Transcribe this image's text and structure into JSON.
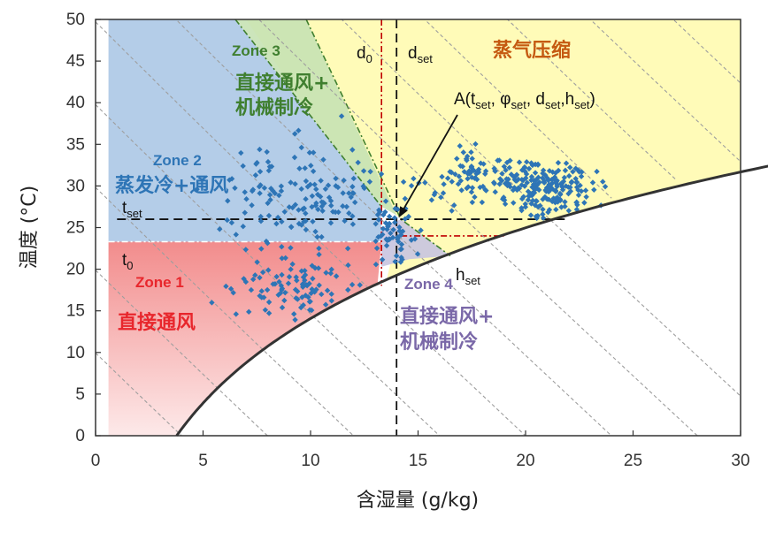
{
  "chart_data": {
    "type": "scatter",
    "xlabel": "含湿量 (g/kg)",
    "ylabel": "温度 (°C)",
    "xlim": [
      0,
      30
    ],
    "ylim": [
      0,
      50
    ],
    "xticks": [
      0,
      5,
      10,
      15,
      20,
      25,
      30
    ],
    "yticks": [
      0,
      5,
      10,
      15,
      20,
      25,
      30,
      35,
      40,
      45,
      50
    ],
    "grid": false,
    "setpoint": {
      "t_set": 26,
      "d_set": 14,
      "d_0": 13,
      "t_0": 23.3
    },
    "marker_labels": {
      "t_set": {
        "main": "t",
        "sub": "set"
      },
      "t_0": {
        "main": "t",
        "sub": "0"
      },
      "d_0": {
        "main": "d",
        "sub": "0"
      },
      "d_set": {
        "main": "d",
        "sub": "set"
      },
      "h_set": {
        "main": "h",
        "sub": "set"
      }
    },
    "point_A": {
      "x": 14.1,
      "y": 26.2,
      "label_parts": [
        {
          "t": "A(t",
          "sub": false
        },
        {
          "t": "set",
          "sub": true
        },
        {
          "t": ", φ",
          "sub": false
        },
        {
          "t": "set",
          "sub": true
        },
        {
          "t": ", d",
          "sub": false
        },
        {
          "t": "set",
          "sub": true
        },
        {
          "t": ",h",
          "sub": false
        },
        {
          "t": "set",
          "sub": true
        },
        {
          "t": ")",
          "sub": false
        }
      ]
    },
    "zones": [
      {
        "id": "zone1",
        "en": "Zone 1",
        "cn": [
          "直接通风"
        ],
        "en_color": "#e8262c",
        "cn_color": "#e8262c"
      },
      {
        "id": "zone2",
        "en": "Zone 2",
        "cn": [
          "蒸发冷+通风"
        ],
        "en_color": "#2e75b6",
        "cn_color": "#2e75b6"
      },
      {
        "id": "zone3",
        "en": "Zone 3",
        "cn": [
          "直接通风+",
          "机械制冷"
        ],
        "en_color": "#3f7f2f",
        "cn_color": "#3f7f2f"
      },
      {
        "id": "zone4",
        "en": "Zone 4",
        "cn": [
          "直接通风+",
          "机械制冷"
        ],
        "en_color": "#7a68a8",
        "cn_color": "#7a68a8"
      },
      {
        "id": "zone5",
        "en": "",
        "cn": [
          "蒸气压缩"
        ],
        "en_color": "#c55a11",
        "cn_color": "#c55a11"
      }
    ],
    "colors": {
      "points": "#2e75b6",
      "saturation_curve": "#333333",
      "guide_dashed": "#111111",
      "zone1_fill": "#f4a0a0",
      "zone2_fill": "#b4cde8",
      "zone3_fill": "#c6e2b4",
      "zone4_fill": "#c8c4e0",
      "zone5_fill": "#fffbb8"
    },
    "point_cloud": {
      "description_note": "",
      "groups": [
        {
          "cx": 21.0,
          "cy": 29.5,
          "sx": 1.6,
          "sy": 2.6,
          "n": 190
        },
        {
          "cx": 17.5,
          "cy": 31.0,
          "sx": 2.2,
          "sy": 3.0,
          "n": 90
        },
        {
          "cx": 9.5,
          "cy": 28.5,
          "sx": 3.0,
          "sy": 6.0,
          "n": 150
        },
        {
          "cx": 9.0,
          "cy": 18.0,
          "sx": 2.6,
          "sy": 3.2,
          "n": 90
        },
        {
          "cx": 13.8,
          "cy": 24.0,
          "sx": 1.0,
          "sy": 3.0,
          "n": 55
        }
      ]
    }
  }
}
